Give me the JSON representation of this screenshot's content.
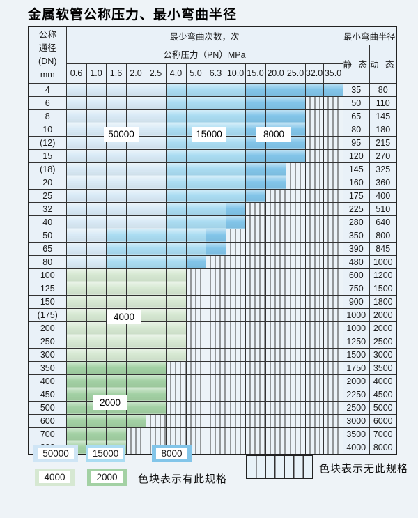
{
  "page": {
    "title": "金属软管公称压力、最小弯曲半径"
  },
  "table": {
    "header": {
      "dn_lines": [
        "公称",
        "通径",
        "(DN)",
        "mm"
      ],
      "bend_cycles": "最少弯曲次数，次",
      "pressure": "公称压力（PN）MPa",
      "min_radius": "最小弯曲半径",
      "static_label": "静 态",
      "dynamic_label": "动 态",
      "pressures": [
        "0.6",
        "1.0",
        "1.6",
        "2.0",
        "2.5",
        "4.0",
        "5.0",
        "6.3",
        "10.0",
        "15.0",
        "20.0",
        "25.0",
        "32.0",
        "35.0"
      ]
    },
    "cell_code_meaning": {
      "L": "50000 cycles (light blue)",
      "M": "15000 cycles (medium blue)",
      "D": "8000 cycles (dark blue)",
      "g": "4000 cycles (light green)",
      "G": "2000 cycles (medium green)",
      "S": "no such specification (striped)"
    },
    "rows": [
      {
        "dn": "4",
        "cells": "LLLLLMMMMDDDDD",
        "static": "35",
        "dynamic": "80"
      },
      {
        "dn": "6",
        "cells": "LLLLLMMMMDDDSS",
        "static": "50",
        "dynamic": "110"
      },
      {
        "dn": "8",
        "cells": "LLLLLMMMMDDDSS",
        "static": "65",
        "dynamic": "145"
      },
      {
        "dn": "10",
        "cells": "LLLLLMMMMDDDSS",
        "static": "80",
        "dynamic": "180"
      },
      {
        "dn": "(12)",
        "cells": "LLLLLMMMMDDDSS",
        "static": "95",
        "dynamic": "215"
      },
      {
        "dn": "15",
        "cells": "LLLLLMMMMDDDSS",
        "static": "120",
        "dynamic": "270"
      },
      {
        "dn": "(18)",
        "cells": "LLLLLMMMMDDSSS",
        "static": "145",
        "dynamic": "325"
      },
      {
        "dn": "20",
        "cells": "LLLLLMMMMDDSSS",
        "static": "160",
        "dynamic": "360"
      },
      {
        "dn": "25",
        "cells": "LLLLLMMMMDSSSS",
        "static": "175",
        "dynamic": "400"
      },
      {
        "dn": "32",
        "cells": "LLLLLMMMDSSSSS",
        "static": "225",
        "dynamic": "510"
      },
      {
        "dn": "40",
        "cells": "LLLLLMMMDSSSSS",
        "static": "280",
        "dynamic": "640"
      },
      {
        "dn": "50",
        "cells": "LLMMMMMDSSSSSS",
        "static": "350",
        "dynamic": "800"
      },
      {
        "dn": "65",
        "cells": "LLMMMMMDSSSSSS",
        "static": "390",
        "dynamic": "845"
      },
      {
        "dn": "80",
        "cells": "LLMMMMDSSSSSSS",
        "static": "480",
        "dynamic": "1000"
      },
      {
        "dn": "100",
        "cells": "ggggggSSSSSSSS",
        "static": "600",
        "dynamic": "1200"
      },
      {
        "dn": "125",
        "cells": "ggggggSSSSSSSS",
        "static": "750",
        "dynamic": "1500"
      },
      {
        "dn": "150",
        "cells": "ggggggSSSSSSSS",
        "static": "900",
        "dynamic": "1800"
      },
      {
        "dn": "(175)",
        "cells": "ggggggSSSSSSSS",
        "static": "1000",
        "dynamic": "2000"
      },
      {
        "dn": "200",
        "cells": "ggggggSSSSSSSS",
        "static": "1000",
        "dynamic": "2000"
      },
      {
        "dn": "250",
        "cells": "ggggggSSSSSSSS",
        "static": "1250",
        "dynamic": "2500"
      },
      {
        "dn": "300",
        "cells": "ggggggSSSSSSSS",
        "static": "1500",
        "dynamic": "3000"
      },
      {
        "dn": "350",
        "cells": "GGGGGSSSSSSSSS",
        "static": "1750",
        "dynamic": "3500"
      },
      {
        "dn": "400",
        "cells": "GGGGGSSSSSSSSS",
        "static": "2000",
        "dynamic": "4000"
      },
      {
        "dn": "450",
        "cells": "GGGGGSSSSSSSSS",
        "static": "2250",
        "dynamic": "4500"
      },
      {
        "dn": "500",
        "cells": "GGGGGSSSSSSSSS",
        "static": "2500",
        "dynamic": "5000"
      },
      {
        "dn": "600",
        "cells": "GGGGSSSSSSSSSS",
        "static": "3000",
        "dynamic": "6000"
      },
      {
        "dn": "700",
        "cells": "GGGSSSSSSSSSSS",
        "static": "3500",
        "dynamic": "7000"
      },
      {
        "dn": "800",
        "cells": "GGGSSSSSSSSSSS",
        "static": "4000",
        "dynamic": "8000"
      }
    ],
    "region_labels": [
      "50000",
      "15000",
      "8000",
      "4000",
      "2000"
    ]
  },
  "legend": {
    "swatches": [
      "50000",
      "15000",
      "8000",
      "4000",
      "2000"
    ],
    "has_spec_label": "色块表示有此规格",
    "no_spec_label": "色块表示无此规格"
  },
  "colors": {
    "blue_50000": "#d9eaf6",
    "blue_15000": "#aadcf2",
    "blue_8000": "#82c5e9",
    "green_4000": "#d6e8d2",
    "green_2000": "#a3d1a4",
    "stripe_bg": "#ecf3f8",
    "header_bg": "#e9f1f8",
    "grid_line": "#333333",
    "page_bg": "#eef3f7"
  }
}
